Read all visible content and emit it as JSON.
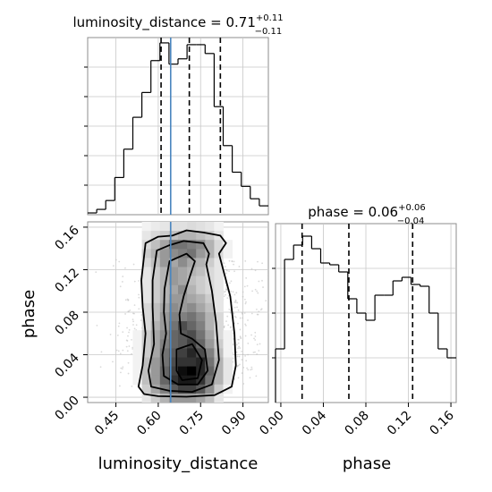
{
  "chart_data": [
    {
      "panel": "luminosity_distance-marginal",
      "type": "histogram",
      "title": {
        "param": "luminosity_distance",
        "median": "0.71",
        "upper": "+0.11",
        "lower": "−0.11"
      },
      "xlim": [
        0.35,
        0.99
      ],
      "ylim": [
        0,
        1
      ],
      "bin_edges": [
        0.35,
        0.382,
        0.414,
        0.446,
        0.478,
        0.51,
        0.542,
        0.574,
        0.606,
        0.638,
        0.67,
        0.702,
        0.734,
        0.766,
        0.798,
        0.83,
        0.862,
        0.894,
        0.926,
        0.958,
        0.99
      ],
      "counts": [
        0.01,
        0.03,
        0.08,
        0.21,
        0.37,
        0.55,
        0.69,
        0.87,
        0.97,
        0.85,
        0.88,
        0.96,
        0.96,
        0.91,
        0.61,
        0.39,
        0.24,
        0.16,
        0.09,
        0.05
      ],
      "quantiles": [
        0.61,
        0.71,
        0.82
      ],
      "truth": 0.644,
      "ticks": [
        0.45,
        0.6,
        0.75,
        0.9
      ],
      "tick_labels": [
        "0.45",
        "0.60",
        "0.75",
        "0.90"
      ]
    },
    {
      "panel": "luminosity_distance-vs-phase",
      "type": "scatter-density-contour",
      "xlabel": "luminosity_distance",
      "ylabel": "phase",
      "xlim": [
        0.35,
        0.99
      ],
      "ylim": [
        -0.005,
        0.165
      ],
      "truth_x": 0.644,
      "x_ticks": [
        0.45,
        0.6,
        0.75,
        0.9
      ],
      "x_tick_labels": [
        "0.45",
        "0.60",
        "0.75",
        "0.90"
      ],
      "y_ticks": [
        0.0,
        0.04,
        0.08,
        0.12,
        0.16
      ],
      "y_tick_labels": [
        "0.00",
        "0.04",
        "0.08",
        "0.12",
        "0.16"
      ],
      "density_grid": {
        "x_edges": [
          0.35,
          0.382,
          0.414,
          0.446,
          0.478,
          0.51,
          0.542,
          0.574,
          0.606,
          0.638,
          0.67,
          0.702,
          0.734,
          0.766,
          0.798,
          0.83,
          0.862,
          0.894,
          0.926,
          0.958,
          0.99
        ],
        "y_edges": [
          -0.005,
          0.0035,
          0.012,
          0.0205,
          0.029,
          0.0375,
          0.046,
          0.0545,
          0.063,
          0.0715,
          0.08,
          0.0885,
          0.097,
          0.1055,
          0.114,
          0.1225,
          0.131,
          0.1395,
          0.148,
          0.1565,
          0.165
        ],
        "rows_top_to_bottom": [
          [
            0,
            0,
            0,
            0,
            0,
            0,
            0.05,
            0.08,
            0.1,
            0.12,
            0.12,
            0.14,
            0.12,
            0.1,
            0.05,
            0,
            0,
            0,
            0,
            0
          ],
          [
            0,
            0,
            0,
            0,
            0,
            0,
            0.1,
            0.15,
            0.2,
            0.25,
            0.3,
            0.3,
            0.25,
            0.2,
            0.1,
            0,
            0,
            0,
            0,
            0
          ],
          [
            0,
            0,
            0,
            0,
            0,
            0,
            0.15,
            0.25,
            0.35,
            0.55,
            0.55,
            0.5,
            0.45,
            0.3,
            0.15,
            0.05,
            0,
            0,
            0,
            0
          ],
          [
            0,
            0,
            0,
            0,
            0,
            0,
            0.2,
            0.3,
            0.4,
            0.45,
            0.5,
            0.55,
            0.4,
            0.3,
            0.15,
            0.05,
            0,
            0,
            0,
            0
          ],
          [
            0,
            0,
            0,
            0,
            0,
            0,
            0.15,
            0.25,
            0.4,
            0.35,
            0.45,
            0.35,
            0.3,
            0.2,
            0.1,
            0,
            0,
            0,
            0,
            0
          ],
          [
            0,
            0,
            0,
            0,
            0,
            0,
            0.1,
            0.2,
            0.3,
            0.4,
            0.35,
            0.3,
            0.25,
            0.15,
            0.1,
            0,
            0,
            0,
            0,
            0
          ],
          [
            0,
            0,
            0,
            0,
            0,
            0,
            0.1,
            0.2,
            0.3,
            0.4,
            0.35,
            0.25,
            0.2,
            0.15,
            0.1,
            0,
            0,
            0,
            0,
            0
          ],
          [
            0,
            0,
            0,
            0,
            0,
            0,
            0.1,
            0.2,
            0.3,
            0.35,
            0.45,
            0.3,
            0.2,
            0.15,
            0.1,
            0,
            0,
            0,
            0,
            0
          ],
          [
            0,
            0,
            0,
            0,
            0,
            0,
            0.1,
            0.2,
            0.3,
            0.4,
            0.4,
            0.35,
            0.3,
            0.2,
            0.1,
            0,
            0,
            0,
            0,
            0
          ],
          [
            0,
            0,
            0,
            0,
            0,
            0,
            0.15,
            0.25,
            0.35,
            0.45,
            0.4,
            0.45,
            0.35,
            0.25,
            0.1,
            0,
            0,
            0,
            0,
            0
          ],
          [
            0,
            0,
            0,
            0,
            0,
            0,
            0.15,
            0.25,
            0.4,
            0.5,
            0.5,
            0.55,
            0.45,
            0.3,
            0.15,
            0,
            0,
            0,
            0,
            0
          ],
          [
            0,
            0,
            0,
            0,
            0,
            0,
            0.15,
            0.3,
            0.4,
            0.55,
            0.7,
            0.6,
            0.5,
            0.3,
            0.15,
            0,
            0,
            0,
            0,
            0
          ],
          [
            0,
            0,
            0,
            0,
            0,
            0.05,
            0.2,
            0.35,
            0.45,
            0.6,
            0.65,
            0.7,
            0.55,
            0.35,
            0.15,
            0.05,
            0,
            0,
            0,
            0
          ],
          [
            0,
            0,
            0,
            0,
            0,
            0.05,
            0.2,
            0.35,
            0.5,
            0.6,
            0.65,
            0.75,
            0.6,
            0.4,
            0.2,
            0.05,
            0,
            0,
            0,
            0
          ],
          [
            0,
            0,
            0,
            0,
            0,
            0.05,
            0.2,
            0.35,
            0.55,
            0.65,
            0.75,
            0.85,
            0.7,
            0.5,
            0.25,
            0.05,
            0,
            0,
            0,
            0
          ],
          [
            0,
            0,
            0,
            0,
            0,
            0.05,
            0.25,
            0.4,
            0.55,
            0.7,
            0.8,
            0.8,
            0.85,
            0.55,
            0.3,
            0.1,
            0,
            0,
            0,
            0
          ],
          [
            0,
            0,
            0,
            0,
            0,
            0.05,
            0.25,
            0.4,
            0.6,
            0.75,
            0.95,
            1.0,
            0.85,
            0.6,
            0.3,
            0.1,
            0,
            0,
            0,
            0
          ],
          [
            0,
            0,
            0,
            0,
            0,
            0.05,
            0.25,
            0.4,
            0.6,
            0.8,
            0.9,
            0.9,
            0.8,
            0.55,
            0.3,
            0.1,
            0,
            0,
            0,
            0
          ],
          [
            0,
            0,
            0,
            0,
            0,
            0,
            0.2,
            0.35,
            0.5,
            0.65,
            0.75,
            0.75,
            0.65,
            0.45,
            0.2,
            0.05,
            0,
            0,
            0,
            0
          ],
          [
            0,
            0,
            0,
            0,
            0,
            0,
            0.1,
            0.2,
            0.3,
            0.4,
            0.4,
            0.4,
            0.35,
            0.25,
            0.1,
            0,
            0,
            0,
            0,
            0
          ]
        ]
      },
      "contours": [
        [
          [
            0.54,
            0.11
          ],
          [
            0.555,
            0.145
          ],
          [
            0.6,
            0.151
          ],
          [
            0.65,
            0.152
          ],
          [
            0.7,
            0.157
          ],
          [
            0.76,
            0.155
          ],
          [
            0.82,
            0.152
          ],
          [
            0.84,
            0.145
          ],
          [
            0.815,
            0.135
          ],
          [
            0.83,
            0.12
          ],
          [
            0.855,
            0.095
          ],
          [
            0.87,
            0.06
          ],
          [
            0.875,
            0.03
          ],
          [
            0.86,
            0.01
          ],
          [
            0.8,
            0.002
          ],
          [
            0.7,
            0.0005
          ],
          [
            0.6,
            0.001
          ],
          [
            0.55,
            0.003
          ],
          [
            0.53,
            0.01
          ],
          [
            0.545,
            0.03
          ],
          [
            0.555,
            0.06
          ],
          [
            0.545,
            0.085
          ],
          [
            0.54,
            0.11
          ]
        ],
        [
          [
            0.58,
            0.11
          ],
          [
            0.595,
            0.138
          ],
          [
            0.64,
            0.143
          ],
          [
            0.69,
            0.147
          ],
          [
            0.76,
            0.145
          ],
          [
            0.78,
            0.135
          ],
          [
            0.77,
            0.125
          ],
          [
            0.79,
            0.1
          ],
          [
            0.805,
            0.07
          ],
          [
            0.815,
            0.035
          ],
          [
            0.79,
            0.012
          ],
          [
            0.72,
            0.005
          ],
          [
            0.64,
            0.006
          ],
          [
            0.575,
            0.01
          ],
          [
            0.565,
            0.025
          ],
          [
            0.585,
            0.05
          ],
          [
            0.58,
            0.085
          ],
          [
            0.58,
            0.11
          ]
        ],
        [
          [
            0.622,
            0.102
          ],
          [
            0.64,
            0.128
          ],
          [
            0.7,
            0.135
          ],
          [
            0.73,
            0.128
          ],
          [
            0.71,
            0.112
          ],
          [
            0.69,
            0.095
          ],
          [
            0.675,
            0.078
          ],
          [
            0.68,
            0.06
          ],
          [
            0.72,
            0.055
          ],
          [
            0.765,
            0.045
          ],
          [
            0.775,
            0.025
          ],
          [
            0.74,
            0.012
          ],
          [
            0.67,
            0.012
          ],
          [
            0.62,
            0.02
          ],
          [
            0.615,
            0.04
          ],
          [
            0.628,
            0.06
          ],
          [
            0.62,
            0.08
          ],
          [
            0.622,
            0.102
          ]
        ],
        [
          [
            0.665,
            0.045
          ],
          [
            0.72,
            0.05
          ],
          [
            0.755,
            0.035
          ],
          [
            0.74,
            0.018
          ],
          [
            0.685,
            0.016
          ],
          [
            0.665,
            0.025
          ],
          [
            0.665,
            0.045
          ]
        ]
      ]
    },
    {
      "panel": "phase-marginal",
      "type": "histogram",
      "title": {
        "param": "phase",
        "median": "0.06",
        "upper": "+0.06",
        "lower": "−0.04"
      },
      "xlabel": "phase",
      "xlim": [
        -0.005,
        0.165
      ],
      "ylim": [
        0,
        1
      ],
      "bin_edges": [
        -0.005,
        0.0035,
        0.012,
        0.0205,
        0.029,
        0.0375,
        0.046,
        0.0545,
        0.063,
        0.0715,
        0.08,
        0.0885,
        0.097,
        0.1055,
        0.114,
        0.1225,
        0.131,
        0.1395,
        0.148,
        0.1565,
        0.165
      ],
      "counts": [
        0.3,
        0.8,
        0.88,
        0.93,
        0.86,
        0.78,
        0.77,
        0.73,
        0.58,
        0.5,
        0.46,
        0.6,
        0.6,
        0.68,
        0.7,
        0.66,
        0.65,
        0.5,
        0.3,
        0.25
      ],
      "quantiles": [
        0.02,
        0.064,
        0.124
      ],
      "ticks": [
        0.0,
        0.04,
        0.08,
        0.12,
        0.16
      ],
      "tick_labels": [
        "0.00",
        "0.04",
        "0.08",
        "0.12",
        "0.16"
      ]
    }
  ],
  "colors": {
    "truth_line": "#4b86bf",
    "axes_frame": "#8c8c8c",
    "gridline": "#c8c8c8",
    "scatter_point": "#bbbbbb"
  }
}
